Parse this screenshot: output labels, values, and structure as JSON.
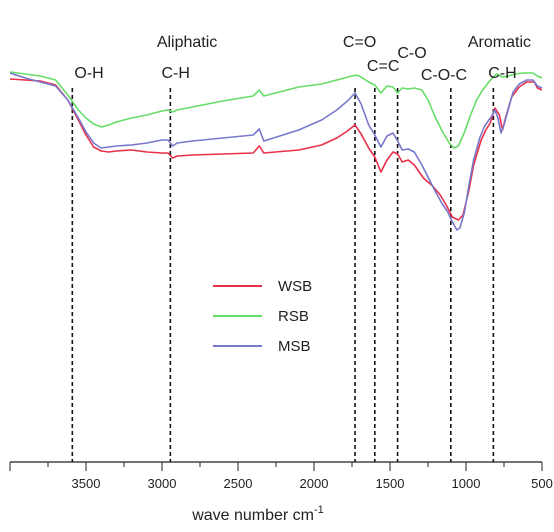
{
  "chart_data": {
    "type": "line",
    "xlabel": "wave number cm",
    "xlabel_sup": "-1",
    "xlim": [
      4000,
      500
    ],
    "x_reversed": true,
    "xticks": [
      3500,
      3000,
      2500,
      2000,
      1500,
      1000,
      500
    ],
    "y_axis_shown": false,
    "grid": false,
    "legend_placement": "center",
    "series": [
      {
        "name": "WSB",
        "color": "#e8304a",
        "points": [
          [
            4000,
            79
          ],
          [
            3900,
            80
          ],
          [
            3800,
            81
          ],
          [
            3700,
            85
          ],
          [
            3620,
            100
          ],
          [
            3550,
            120
          ],
          [
            3500,
            135
          ],
          [
            3450,
            147
          ],
          [
            3400,
            151
          ],
          [
            3350,
            152
          ],
          [
            3300,
            151
          ],
          [
            3200,
            150
          ],
          [
            3100,
            152
          ],
          [
            3000,
            153
          ],
          [
            2960,
            153
          ],
          [
            2930,
            158
          ],
          [
            2900,
            156
          ],
          [
            2800,
            155
          ],
          [
            2600,
            154
          ],
          [
            2400,
            153
          ],
          [
            2360,
            146
          ],
          [
            2330,
            153
          ],
          [
            2100,
            150
          ],
          [
            1950,
            145
          ],
          [
            1850,
            138
          ],
          [
            1780,
            131
          ],
          [
            1730,
            125
          ],
          [
            1690,
            134
          ],
          [
            1640,
            148
          ],
          [
            1600,
            157
          ],
          [
            1560,
            172
          ],
          [
            1520,
            160
          ],
          [
            1480,
            152
          ],
          [
            1450,
            154
          ],
          [
            1420,
            162
          ],
          [
            1380,
            160
          ],
          [
            1340,
            165
          ],
          [
            1280,
            178
          ],
          [
            1220,
            186
          ],
          [
            1170,
            195
          ],
          [
            1130,
            205
          ],
          [
            1090,
            217
          ],
          [
            1050,
            220
          ],
          [
            1020,
            215
          ],
          [
            980,
            190
          ],
          [
            950,
            165
          ],
          [
            900,
            140
          ],
          [
            870,
            130
          ],
          [
            840,
            123
          ],
          [
            810,
            108
          ],
          [
            780,
            115
          ],
          [
            760,
            130
          ],
          [
            740,
            118
          ],
          [
            700,
            97
          ],
          [
            650,
            87
          ],
          [
            600,
            82
          ],
          [
            550,
            82
          ],
          [
            530,
            88
          ],
          [
            500,
            90
          ]
        ]
      },
      {
        "name": "RSB",
        "color": "#66dd66",
        "points": [
          [
            4000,
            72
          ],
          [
            3900,
            74
          ],
          [
            3800,
            76
          ],
          [
            3700,
            80
          ],
          [
            3620,
            95
          ],
          [
            3550,
            110
          ],
          [
            3500,
            118
          ],
          [
            3450,
            124
          ],
          [
            3400,
            127
          ],
          [
            3350,
            125
          ],
          [
            3300,
            122
          ],
          [
            3200,
            118
          ],
          [
            3100,
            115
          ],
          [
            3000,
            111
          ],
          [
            2960,
            110
          ],
          [
            2930,
            112
          ],
          [
            2900,
            110
          ],
          [
            2800,
            107
          ],
          [
            2600,
            101
          ],
          [
            2400,
            96
          ],
          [
            2360,
            90
          ],
          [
            2330,
            96
          ],
          [
            2100,
            87
          ],
          [
            1950,
            84
          ],
          [
            1850,
            80
          ],
          [
            1750,
            76
          ],
          [
            1720,
            75
          ],
          [
            1690,
            77
          ],
          [
            1640,
            82
          ],
          [
            1600,
            85
          ],
          [
            1560,
            93
          ],
          [
            1520,
            86
          ],
          [
            1480,
            87
          ],
          [
            1450,
            93
          ],
          [
            1420,
            88
          ],
          [
            1380,
            89
          ],
          [
            1340,
            88
          ],
          [
            1290,
            90
          ],
          [
            1250,
            100
          ],
          [
            1200,
            118
          ],
          [
            1150,
            133
          ],
          [
            1110,
            143
          ],
          [
            1080,
            148
          ],
          [
            1050,
            146
          ],
          [
            1010,
            132
          ],
          [
            970,
            115
          ],
          [
            930,
            100
          ],
          [
            890,
            90
          ],
          [
            850,
            82
          ],
          [
            820,
            77
          ],
          [
            800,
            74
          ],
          [
            760,
            77
          ],
          [
            720,
            76
          ],
          [
            680,
            74
          ],
          [
            620,
            73
          ],
          [
            560,
            73
          ],
          [
            530,
            76
          ],
          [
            500,
            78
          ]
        ]
      },
      {
        "name": "MSB",
        "color": "#7878cc",
        "points": [
          [
            4000,
            73
          ],
          [
            3900,
            78
          ],
          [
            3800,
            82
          ],
          [
            3700,
            86
          ],
          [
            3620,
            100
          ],
          [
            3550,
            118
          ],
          [
            3500,
            132
          ],
          [
            3450,
            143
          ],
          [
            3400,
            148
          ],
          [
            3350,
            147
          ],
          [
            3300,
            146
          ],
          [
            3200,
            145
          ],
          [
            3100,
            143
          ],
          [
            3000,
            140
          ],
          [
            2960,
            140
          ],
          [
            2930,
            146
          ],
          [
            2900,
            143
          ],
          [
            2800,
            141
          ],
          [
            2600,
            138
          ],
          [
            2400,
            135
          ],
          [
            2360,
            129
          ],
          [
            2330,
            141
          ],
          [
            2100,
            130
          ],
          [
            1950,
            120
          ],
          [
            1850,
            110
          ],
          [
            1780,
            101
          ],
          [
            1730,
            93
          ],
          [
            1690,
            104
          ],
          [
            1640,
            125
          ],
          [
            1600,
            135
          ],
          [
            1560,
            147
          ],
          [
            1520,
            136
          ],
          [
            1480,
            133
          ],
          [
            1450,
            141
          ],
          [
            1420,
            150
          ],
          [
            1380,
            149
          ],
          [
            1340,
            152
          ],
          [
            1290,
            165
          ],
          [
            1240,
            180
          ],
          [
            1200,
            192
          ],
          [
            1160,
            203
          ],
          [
            1120,
            212
          ],
          [
            1090,
            222
          ],
          [
            1060,
            230
          ],
          [
            1040,
            228
          ],
          [
            1010,
            212
          ],
          [
            980,
            185
          ],
          [
            950,
            160
          ],
          [
            910,
            138
          ],
          [
            880,
            127
          ],
          [
            850,
            120
          ],
          [
            830,
            116
          ],
          [
            810,
            110
          ],
          [
            790,
            118
          ],
          [
            770,
            133
          ],
          [
            750,
            125
          ],
          [
            720,
            108
          ],
          [
            690,
            92
          ],
          [
            650,
            84
          ],
          [
            600,
            80
          ],
          [
            560,
            80
          ],
          [
            530,
            86
          ],
          [
            500,
            88
          ]
        ]
      }
    ],
    "reference_lines": [
      3590,
      2945,
      1730,
      1600,
      1450,
      1100,
      820
    ],
    "annotations": [
      {
        "text": "O-H",
        "x": 3480,
        "row": 2
      },
      {
        "text": "Aliphatic",
        "x": 2835,
        "row": 1
      },
      {
        "text": "C-H",
        "x": 2910,
        "row": 2
      },
      {
        "text": "C=O",
        "x": 1700,
        "row": 1
      },
      {
        "text": "C=C",
        "x": 1545,
        "row": 2
      },
      {
        "text": "C-O",
        "x": 1355,
        "row": 2
      },
      {
        "text": "Aromatic",
        "x": 780,
        "row": 1
      },
      {
        "text": "C-O-C",
        "x": 1145,
        "row": 3
      },
      {
        "text": "C-H",
        "x": 760,
        "row": 2
      }
    ]
  }
}
